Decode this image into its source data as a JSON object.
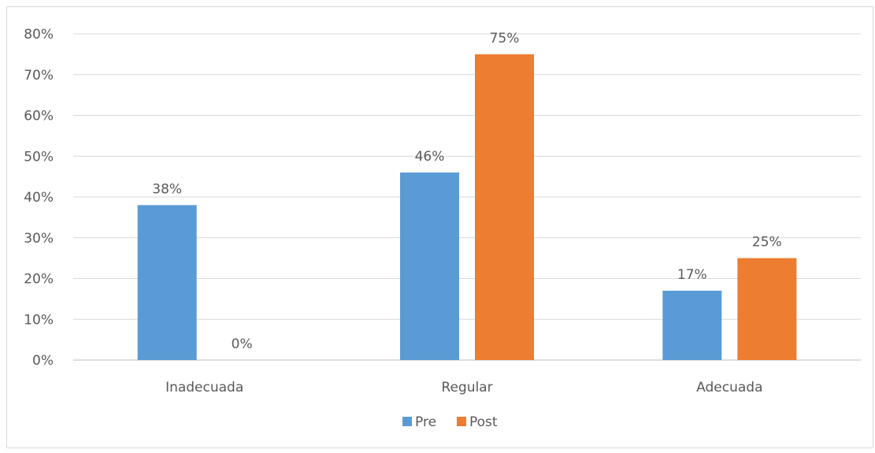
{
  "chart_data": {
    "type": "bar",
    "categories": [
      "Inadecuada",
      "Regular",
      "Adecuada"
    ],
    "series": [
      {
        "name": "Pre",
        "values": [
          0.38,
          0.46,
          0.17
        ],
        "labels": [
          "38%",
          "46%",
          "17%"
        ],
        "color": "#5B9BD5"
      },
      {
        "name": "Post",
        "values": [
          0.0,
          0.75,
          0.25
        ],
        "labels": [
          "0%",
          "75%",
          "25%"
        ],
        "color": "#ED7D31"
      }
    ],
    "ylim": [
      0,
      0.8
    ],
    "yticks": [
      0,
      0.1,
      0.2,
      0.3,
      0.4,
      0.5,
      0.6,
      0.7,
      0.8
    ],
    "ytick_labels": [
      "0%",
      "10%",
      "20%",
      "30%",
      "40%",
      "50%",
      "60%",
      "70%",
      "80%"
    ],
    "grid": true,
    "legend": "bottom-center",
    "title": "",
    "xlabel": "",
    "ylabel": ""
  }
}
